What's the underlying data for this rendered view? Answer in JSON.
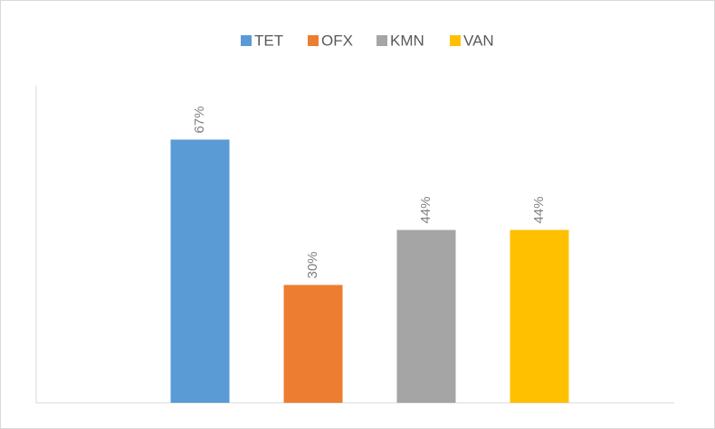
{
  "chart_data": {
    "type": "bar",
    "categories": [
      null
    ],
    "series": [
      {
        "name": "TET",
        "color": "#5b9bd5",
        "values": [
          67
        ],
        "value_labels": [
          "67%"
        ]
      },
      {
        "name": "OFX",
        "color": "#ed7d31",
        "values": [
          30
        ],
        "value_labels": [
          "30%"
        ]
      },
      {
        "name": "KMN",
        "color": "#a5a5a5",
        "values": [
          44
        ],
        "value_labels": [
          "44%"
        ]
      },
      {
        "name": "VAN",
        "color": "#ffc000",
        "values": [
          44
        ],
        "value_labels": [
          "44%"
        ]
      }
    ],
    "ylim": [
      0,
      80
    ],
    "legend": "top"
  }
}
